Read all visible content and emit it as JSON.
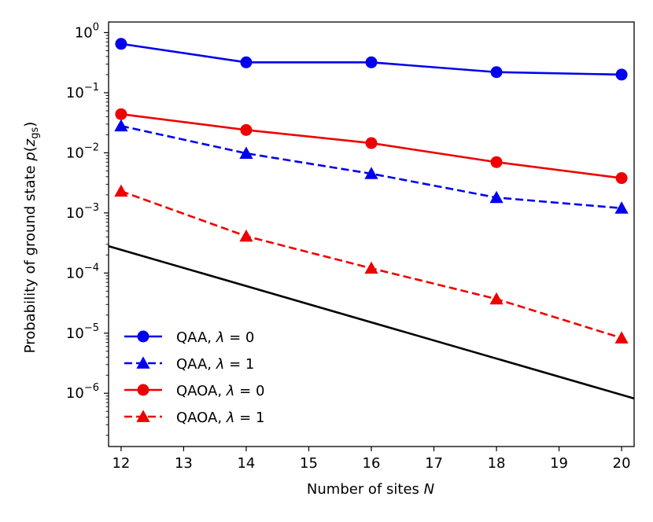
{
  "chart_data": {
    "type": "line",
    "yscale": "log",
    "xlabel": "Number of sites N",
    "ylabel": "Probability of ground state p(z_gs)",
    "xlim": [
      11.8,
      20.2
    ],
    "ylim": [
      1.3e-07,
      1.5
    ],
    "x_ticks": [
      {
        "value": 12,
        "label": "12"
      },
      {
        "value": 13,
        "label": "13"
      },
      {
        "value": 14,
        "label": "14"
      },
      {
        "value": 15,
        "label": "15"
      },
      {
        "value": 16,
        "label": "16"
      },
      {
        "value": 17,
        "label": "17"
      },
      {
        "value": 18,
        "label": "18"
      },
      {
        "value": 19,
        "label": "19"
      },
      {
        "value": 20,
        "label": "20"
      }
    ],
    "y_ticks": [
      {
        "value": 1.0,
        "base": "10",
        "exp": "0"
      },
      {
        "value": 0.1,
        "base": "10",
        "exp": "−1"
      },
      {
        "value": 0.01,
        "base": "10",
        "exp": "−2"
      },
      {
        "value": 0.001,
        "base": "10",
        "exp": "−3"
      },
      {
        "value": 0.0001,
        "base": "10",
        "exp": "−4"
      },
      {
        "value": 1e-05,
        "base": "10",
        "exp": "−5"
      },
      {
        "value": 1e-06,
        "base": "10",
        "exp": "−6"
      }
    ],
    "series": [
      {
        "name": "QAA, λ = 0",
        "color": "#0000ee",
        "dashed": false,
        "marker": "circle",
        "x": [
          12,
          14,
          16,
          18,
          20
        ],
        "y": [
          0.65,
          0.32,
          0.32,
          0.22,
          0.2
        ]
      },
      {
        "name": "QAA, λ = 1",
        "color": "#0000ee",
        "dashed": true,
        "marker": "triangle",
        "x": [
          12,
          14,
          16,
          18,
          20
        ],
        "y": [
          0.028,
          0.0098,
          0.0045,
          0.0018,
          0.0012
        ]
      },
      {
        "name": "QAOA, λ = 0",
        "color": "#ee0000",
        "dashed": false,
        "marker": "circle",
        "x": [
          12,
          14,
          16,
          18,
          20
        ],
        "y": [
          0.044,
          0.024,
          0.0145,
          0.007,
          0.0038
        ]
      },
      {
        "name": "QAOA, λ = 1",
        "color": "#ee0000",
        "dashed": true,
        "marker": "triangle",
        "x": [
          12,
          14,
          16,
          18,
          20
        ],
        "y": [
          0.0023,
          0.00041,
          0.00012,
          3.7e-05,
          8.3e-06
        ]
      }
    ],
    "reference_line": {
      "color": "#000000",
      "x": [
        11.8,
        20.2
      ],
      "y": [
        0.00028,
        8.2e-07
      ]
    },
    "legend": {
      "position": "lower-left",
      "entries": [
        {
          "text": "QAA, ",
          "lambda_value": "0"
        },
        {
          "text": "QAA, ",
          "lambda_value": "1"
        },
        {
          "text": "QAOA, ",
          "lambda_value": "0"
        },
        {
          "text": "QAOA, ",
          "lambda_value": "1"
        }
      ]
    }
  }
}
